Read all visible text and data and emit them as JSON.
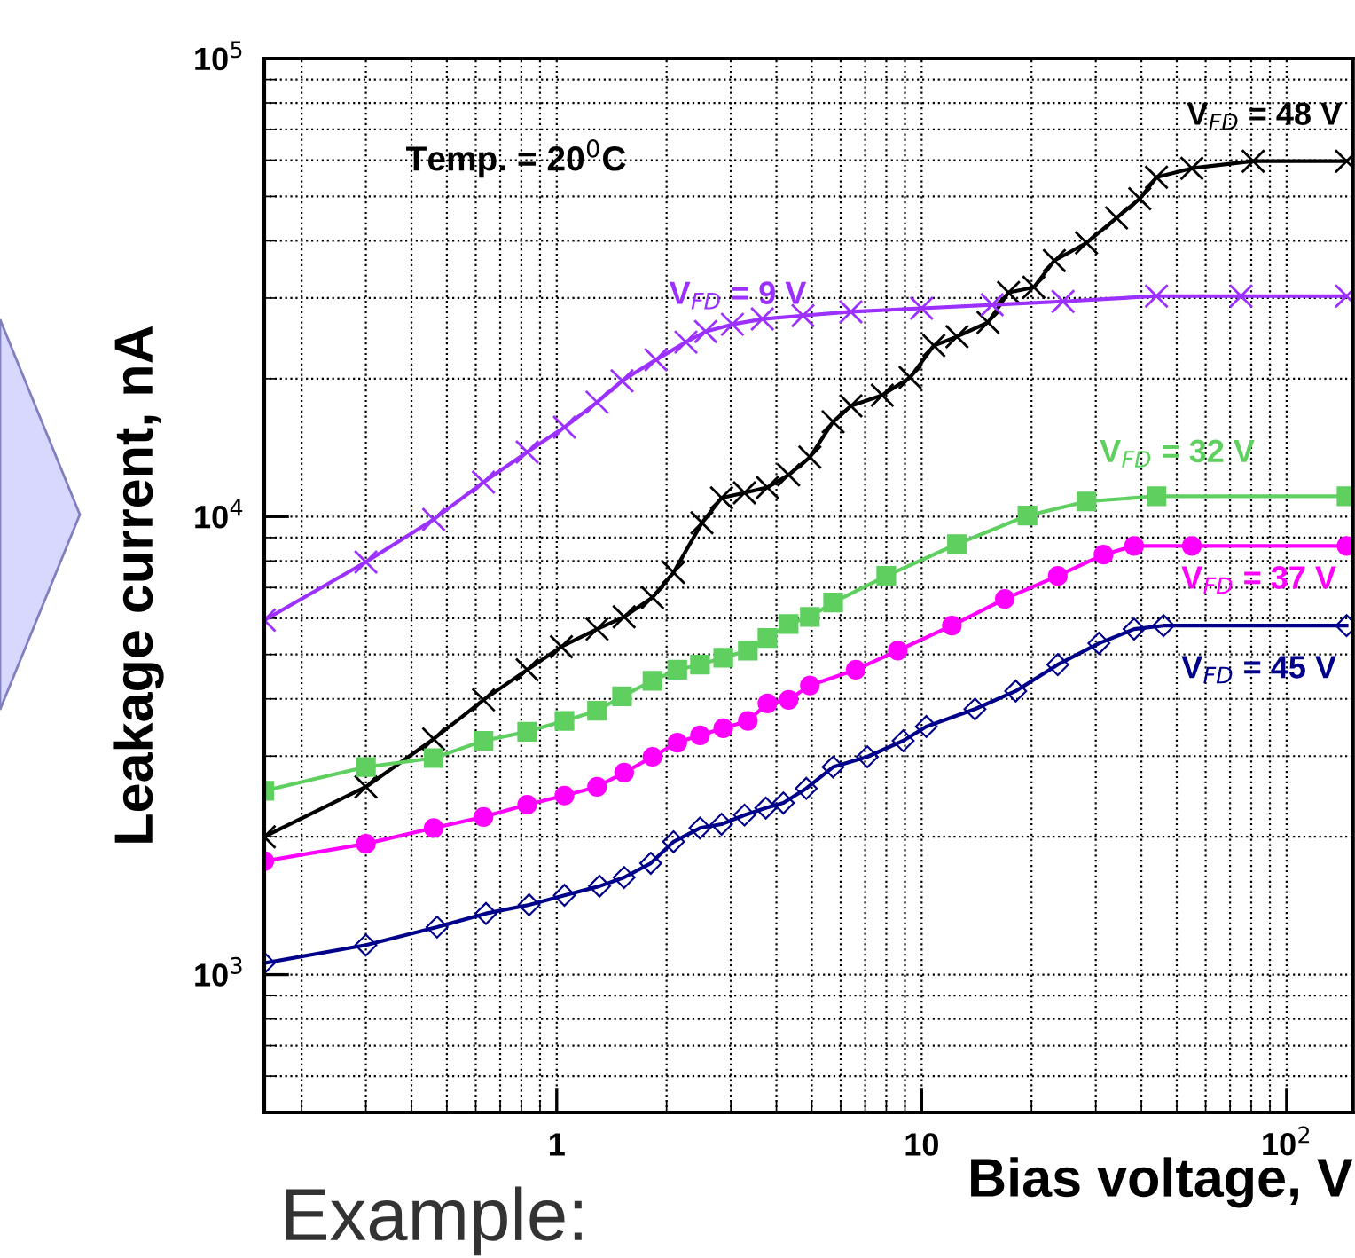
{
  "chart_data": {
    "type": "line",
    "xlabel": "Bias voltage, V",
    "ylabel": "Leakage current, nA",
    "log": "xy",
    "grid": true,
    "legend": false,
    "xlim": [
      0.158,
      152
    ],
    "xticks": [
      {
        "value": 1,
        "label": "1"
      },
      {
        "value": 10,
        "label": "10"
      },
      {
        "value": 100,
        "label": "10$^{2}$"
      }
    ],
    "ylim": [
      500,
      100000
    ],
    "yticks": [
      {
        "value": 1000,
        "label": "10$^{3}$"
      },
      {
        "value": 10000,
        "label": "10$^{4}$"
      },
      {
        "value": 100000,
        "label": "10$^{5}$"
      }
    ],
    "annotations": [
      "Temp. = 20$^{0}$C",
      "Example:"
    ],
    "series": [
      {
        "name": "V$_{FD}$ = 48 V",
        "color": "#000000",
        "marker": "cross",
        "type": "line",
        "x": [
          0.158,
          0.3,
          0.46,
          0.63,
          0.83,
          1.03,
          1.29,
          1.53,
          1.83,
          2.09,
          2.5,
          2.83,
          3.27,
          3.78,
          4.32,
          4.94,
          5.72,
          6.4,
          7.8,
          9.3,
          10.8,
          12.5,
          15.2,
          17.3,
          20.3,
          23.1,
          28.3,
          34.2,
          39.6,
          44,
          55,
          81,
          146
        ],
        "values": [
          2000,
          2570,
          3270,
          3980,
          4630,
          5200,
          5680,
          6040,
          6660,
          7550,
          9690,
          10980,
          11270,
          11580,
          12330,
          13480,
          16110,
          17450,
          18410,
          20120,
          23620,
          24710,
          26530,
          30850,
          31690,
          36210,
          39600,
          44880,
          49440,
          55050,
          57600,
          59700,
          59700
        ]
      },
      {
        "name": "V$_{FD}$ = 9 V",
        "color": "#9b30ff",
        "marker": "cross",
        "type": "line",
        "x": [
          0.158,
          0.3,
          0.46,
          0.63,
          0.83,
          1.05,
          1.29,
          1.51,
          1.87,
          2.26,
          2.56,
          3.03,
          3.66,
          4.73,
          6.4,
          10,
          15.6,
          24.4,
          44,
          75,
          146
        ],
        "values": [
          5940,
          7960,
          9860,
          11890,
          13830,
          15670,
          17770,
          19780,
          21990,
          24040,
          25350,
          26280,
          27000,
          27470,
          28000,
          28500,
          29000,
          29500,
          30300,
          30300,
          30300
        ]
      },
      {
        "name": "V$_{FD}$ = 32 V",
        "color": "#5fcf5f",
        "marker": "square",
        "type": "line",
        "x": [
          0.158,
          0.3,
          0.46,
          0.63,
          0.83,
          1.05,
          1.29,
          1.51,
          1.83,
          2.14,
          2.47,
          2.86,
          3.34,
          3.78,
          4.32,
          4.94,
          5.72,
          8.0,
          12.5,
          19.5,
          28.3,
          44,
          146
        ],
        "values": [
          2520,
          2840,
          2970,
          3240,
          3390,
          3580,
          3770,
          4050,
          4380,
          4630,
          4750,
          4920,
          5100,
          5430,
          5830,
          6040,
          6490,
          7420,
          8710,
          10050,
          10790,
          11080,
          11080
        ]
      },
      {
        "name": "V$_{FD}$ = 37 V",
        "color": "#ff00ff",
        "marker": "circle",
        "type": "line",
        "x": [
          0.158,
          0.3,
          0.46,
          0.63,
          0.83,
          1.05,
          1.29,
          1.53,
          1.83,
          2.14,
          2.47,
          2.86,
          3.34,
          3.78,
          4.32,
          4.94,
          6.6,
          8.6,
          12.1,
          16.9,
          23.6,
          31.5,
          38.2,
          55,
          146
        ],
        "values": [
          1770,
          1930,
          2090,
          2210,
          2350,
          2460,
          2570,
          2760,
          2990,
          3210,
          3330,
          3450,
          3580,
          3910,
          3980,
          4280,
          4630,
          5100,
          5780,
          6610,
          7420,
          8260,
          8630,
          8630,
          8630
        ]
      },
      {
        "name": "V$_{FD}$ = 45 V",
        "color": "#00008b",
        "marker": "diamond",
        "type": "line",
        "x": [
          0.158,
          0.3,
          0.47,
          0.64,
          0.84,
          1.05,
          1.31,
          1.53,
          1.81,
          2.09,
          2.47,
          2.83,
          3.27,
          3.74,
          4.18,
          4.83,
          5.72,
          7.1,
          8.9,
          10.3,
          14.0,
          18.1,
          23.6,
          30.6,
          38.2,
          46,
          146
        ],
        "values": [
          1060,
          1160,
          1270,
          1360,
          1420,
          1490,
          1560,
          1630,
          1750,
          1950,
          2090,
          2130,
          2230,
          2310,
          2370,
          2550,
          2840,
          2990,
          3240,
          3480,
          3800,
          4160,
          4750,
          5290,
          5680,
          5780,
          5780
        ]
      }
    ]
  }
}
